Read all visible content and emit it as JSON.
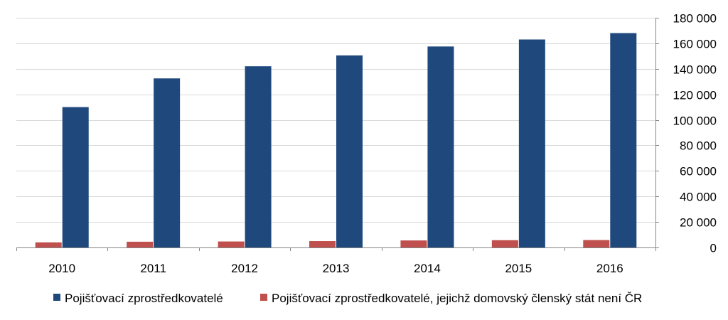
{
  "chart_data": {
    "type": "bar",
    "categories": [
      "2010",
      "2011",
      "2012",
      "2013",
      "2014",
      "2015",
      "2016"
    ],
    "series": [
      {
        "name": "Pojišťovací zprostředkovatelé",
        "color": "#1F497D",
        "values": [
          110000,
          132500,
          142000,
          150500,
          157500,
          163000,
          168000
        ]
      },
      {
        "name": "Pojišťovací zprostředkovatelé, jejichž domovský členský stát není ČR",
        "color": "#C0504D",
        "values": [
          4000,
          4500,
          4700,
          5000,
          5500,
          5700,
          5800
        ]
      }
    ],
    "ylim": [
      0,
      180000
    ],
    "yticks": [
      0,
      20000,
      40000,
      60000,
      80000,
      100000,
      120000,
      140000,
      160000,
      180000
    ],
    "ytick_labels": [
      "0",
      "20 000",
      "40 000",
      "60 000",
      "80 000",
      "100 000",
      "120 000",
      "140 000",
      "160 000",
      "180 000"
    ],
    "y_axis_side": "right",
    "grid": true,
    "legend_position": "bottom",
    "title": "",
    "xlabel": "",
    "ylabel": ""
  }
}
